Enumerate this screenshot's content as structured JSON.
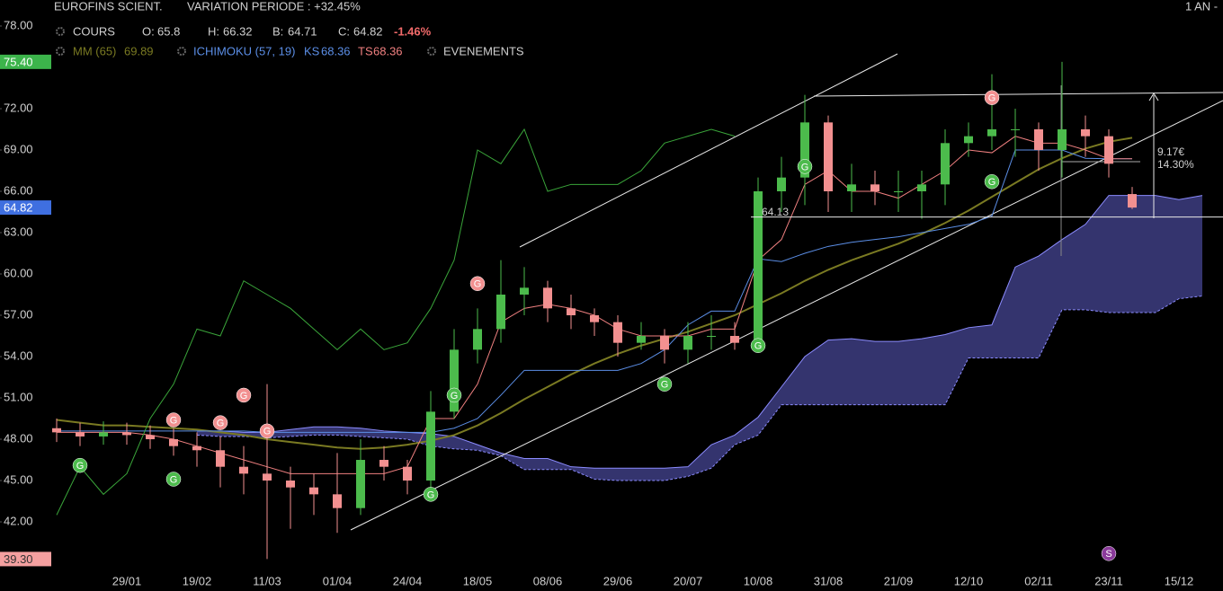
{
  "chart_data": {
    "type": "candlestick",
    "title": "EUROFINS SCIENT.",
    "variation": "VARIATION PERIODE : +32.45%",
    "period": "1 AN -",
    "legend": {
      "cours": "COURS",
      "ohlc": [
        {
          "name": "O:",
          "value": 65.8
        },
        {
          "name": "H:",
          "value": 66.32
        },
        {
          "name": "B:",
          "value": 64.71
        },
        {
          "name": "C:",
          "value": 64.82
        }
      ],
      "change": "-1.46%",
      "ichimoku": "ICHIMOKU (57, 19)",
      "events": "EVENEMENTS"
    },
    "categories": [
      null,
      null,
      null,
      "29/01",
      null,
      null,
      "19/02",
      null,
      null,
      "11/03",
      null,
      null,
      "01/04",
      null,
      null,
      "24/04",
      null,
      null,
      "18/05",
      null,
      null,
      "08/06",
      null,
      null,
      "29/06",
      null,
      null,
      "20/07",
      null,
      null,
      "10/08",
      null,
      null,
      "31/08",
      null,
      null,
      "21/09",
      null,
      null,
      "12/10",
      null,
      null,
      "02/11",
      null,
      null,
      "23/11",
      null,
      null,
      "15/12",
      null
    ],
    "open": [
      48.8,
      48.5,
      48.2,
      48.5,
      48.3,
      48.0,
      47.5,
      47.2,
      46.0,
      45.5,
      45.0,
      44.5,
      44.0,
      43.0,
      46.5,
      46.0,
      45.0,
      50.0,
      54.5,
      56.0,
      58.5,
      59.0,
      57.5,
      57.0,
      56.5,
      55.0,
      55.5,
      54.5,
      55.5,
      55.5,
      55.0,
      66.0,
      67.0,
      71.0,
      66.0,
      66.5,
      66.0,
      66.0,
      66.5,
      69.5,
      70.0,
      70.5,
      70.5,
      69.0,
      70.5,
      70.0,
      65.8,
      null,
      null,
      null
    ],
    "high": [
      49.5,
      49.2,
      49.3,
      49.2,
      49.0,
      48.8,
      48.5,
      48.2,
      47.5,
      52.0,
      46.0,
      45.5,
      47.0,
      48.0,
      47.5,
      46.5,
      51.5,
      56.0,
      57.5,
      61.0,
      60.5,
      59.5,
      58.5,
      57.5,
      57.0,
      56.5,
      56.0,
      56.5,
      57.0,
      56.5,
      67.0,
      68.5,
      73.0,
      71.5,
      68.0,
      67.5,
      67.5,
      67.5,
      70.5,
      71.0,
      74.5,
      72.0,
      71.0,
      75.4,
      71.5,
      70.5,
      66.32,
      null,
      null,
      null
    ],
    "low": [
      47.8,
      47.5,
      47.6,
      47.6,
      47.3,
      46.8,
      46.0,
      44.5,
      44.0,
      39.3,
      41.5,
      42.5,
      41.2,
      42.5,
      45.0,
      44.0,
      44.5,
      49.5,
      53.5,
      55.0,
      57.0,
      56.5,
      56.0,
      55.5,
      54.0,
      54.5,
      53.5,
      53.5,
      54.5,
      54.5,
      54.5,
      64.5,
      65.0,
      64.5,
      64.5,
      65.0,
      64.5,
      64.0,
      65.0,
      68.5,
      69.0,
      68.5,
      67.5,
      67.0,
      68.5,
      67.0,
      64.71,
      null,
      null,
      null
    ],
    "close": [
      48.5,
      48.2,
      48.5,
      48.3,
      48.0,
      47.5,
      47.2,
      46.0,
      45.5,
      45.0,
      44.5,
      44.0,
      43.0,
      46.5,
      46.0,
      45.0,
      50.0,
      54.5,
      56.0,
      58.5,
      59.0,
      57.5,
      57.0,
      56.5,
      55.0,
      55.5,
      54.5,
      55.5,
      55.5,
      55.0,
      66.0,
      67.0,
      71.0,
      66.0,
      66.5,
      66.0,
      66.0,
      66.5,
      69.5,
      70.0,
      70.5,
      70.5,
      69.0,
      70.5,
      70.0,
      68.0,
      64.82,
      null,
      null,
      null
    ],
    "up_color": "#4cbb4c",
    "down_color": "#f29090",
    "series": [
      {
        "name": "MM (65)",
        "last": 69.89,
        "color": "#7a7a22",
        "values": [
          49.4,
          49.2,
          49.0,
          49.0,
          48.9,
          48.8,
          48.7,
          48.5,
          48.3,
          48.0,
          47.8,
          47.6,
          47.4,
          47.3,
          47.4,
          47.6,
          47.9,
          48.3,
          49.0,
          49.9,
          50.9,
          51.8,
          52.7,
          53.5,
          54.2,
          54.8,
          55.3,
          55.8,
          56.4,
          57.0,
          57.8,
          58.6,
          59.5,
          60.3,
          61.0,
          61.6,
          62.2,
          62.9,
          63.7,
          64.6,
          65.6,
          66.6,
          67.6,
          68.4,
          69.1,
          69.6,
          69.89,
          null,
          null,
          null
        ]
      },
      {
        "name": "KS",
        "last": 68.36,
        "color": "#5b8ee6",
        "values": [
          48.6,
          48.6,
          48.6,
          48.6,
          48.6,
          48.6,
          48.6,
          48.6,
          48.6,
          48.5,
          48.5,
          48.5,
          48.5,
          48.5,
          48.5,
          48.5,
          48.5,
          48.8,
          49.5,
          51.2,
          53.0,
          53.0,
          53.0,
          53.0,
          53.0,
          53.5,
          54.5,
          56.3,
          57.3,
          57.3,
          61.1,
          60.9,
          61.5,
          62.0,
          62.3,
          62.5,
          62.7,
          63.0,
          63.3,
          63.6,
          64.2,
          69.0,
          69.0,
          69.0,
          68.4,
          68.36,
          68.36,
          null,
          null,
          null
        ]
      },
      {
        "name": "TS",
        "last": 68.36,
        "color": "#f08080",
        "values": [
          48.5,
          48.5,
          48.5,
          48.5,
          48.3,
          48.0,
          47.5,
          47.0,
          46.5,
          46.0,
          45.5,
          45.5,
          45.5,
          45.5,
          45.5,
          46.0,
          49.5,
          49.5,
          52.0,
          56.5,
          57.5,
          57.8,
          57.5,
          57.0,
          56.0,
          55.5,
          55.5,
          55.5,
          56.0,
          56.0,
          61.0,
          62.5,
          66.5,
          67.5,
          66.0,
          66.0,
          65.5,
          66.5,
          67.5,
          69.0,
          68.8,
          70.0,
          69.5,
          69.5,
          69.0,
          68.36,
          68.36,
          null,
          null,
          null
        ]
      },
      {
        "color": "#3aa53a",
        "values": [
          42.5,
          46.0,
          44.0,
          45.5,
          49.5,
          52.0,
          56.0,
          55.5,
          59.5,
          58.5,
          57.5,
          56.0,
          54.5,
          56.0,
          54.5,
          55.0,
          57.5,
          61.0,
          69.0,
          68.0,
          70.5,
          66.0,
          66.5,
          66.5,
          66.5,
          67.5,
          69.5,
          70.0,
          70.5,
          70.0,
          null,
          null,
          null,
          null,
          null,
          null,
          null,
          null,
          null,
          null,
          null,
          null,
          null,
          null,
          null,
          null,
          null,
          null,
          null,
          null
        ]
      }
    ],
    "cloud": {
      "color": "#34346e",
      "edge": "#8c8cff",
      "upper": [
        null,
        null,
        null,
        null,
        null,
        null,
        48.6,
        48.6,
        48.5,
        48.5,
        48.7,
        48.9,
        48.9,
        48.8,
        48.6,
        48.5,
        48.4,
        48.2,
        47.6,
        47.0,
        46.6,
        46.6,
        46.0,
        45.9,
        45.9,
        45.9,
        45.9,
        46.0,
        47.6,
        48.3,
        49.6,
        51.8,
        54.0,
        55.2,
        55.3,
        55.1,
        55.1,
        55.3,
        55.6,
        56.1,
        56.3,
        60.5,
        61.3,
        62.5,
        63.6,
        65.7,
        65.7,
        65.7,
        65.4,
        65.7
      ],
      "lower": [
        null,
        null,
        null,
        null,
        null,
        null,
        48.3,
        48.2,
        48.2,
        48.1,
        48.2,
        48.3,
        48.3,
        48.2,
        48.1,
        48.0,
        47.5,
        47.3,
        47.2,
        46.8,
        45.8,
        45.8,
        45.8,
        45.1,
        45.0,
        45.0,
        45.0,
        45.3,
        45.9,
        47.6,
        48.3,
        50.5,
        50.5,
        50.5,
        50.5,
        50.5,
        50.5,
        50.5,
        50.5,
        53.9,
        53.9,
        53.9,
        53.9,
        57.4,
        57.4,
        57.2,
        57.2,
        57.2,
        58.2,
        58.4
      ]
    },
    "events": [
      {
        "label": "G",
        "x": 5,
        "price": 49.4,
        "color": "#f29090"
      },
      {
        "label": "G",
        "x": 7,
        "price": 49.2,
        "color": "#f29090"
      },
      {
        "label": "G",
        "x": 8,
        "price": 51.2,
        "color": "#f29090"
      },
      {
        "label": "G",
        "x": 9,
        "price": 48.6,
        "color": "#f29090"
      },
      {
        "label": "G",
        "x": 18,
        "price": 59.3,
        "color": "#f29090"
      },
      {
        "label": "G",
        "x": 40,
        "price": 72.8,
        "color": "#f29090"
      },
      {
        "label": "G",
        "x": 1,
        "price": 46.1,
        "color": "#4cbb4c"
      },
      {
        "label": "G",
        "x": 5,
        "price": 45.1,
        "color": "#4cbb4c"
      },
      {
        "label": "G",
        "x": 16,
        "price": 44.0,
        "color": "#4cbb4c"
      },
      {
        "label": "G",
        "x": 17,
        "price": 51.2,
        "color": "#4cbb4c"
      },
      {
        "label": "G",
        "x": 26,
        "price": 52.0,
        "color": "#4cbb4c"
      },
      {
        "label": "G",
        "x": 30,
        "price": 54.8,
        "color": "#4cbb4c"
      },
      {
        "label": "G",
        "x": 32,
        "price": 67.8,
        "color": "#4cbb4c"
      },
      {
        "label": "G",
        "x": 40,
        "price": 66.7,
        "color": "#4cbb4c"
      },
      {
        "label": "S",
        "x": 45,
        "price": 39.7,
        "color": "#8a3a9a"
      }
    ],
    "price_markers": [
      {
        "value": 75.4,
        "label": "75.40",
        "color": "#3cb44b"
      },
      {
        "value": 64.82,
        "label": "64.82",
        "color": "#3f6fe0"
      },
      {
        "value": 39.3,
        "label": "39.30",
        "color": "#f4a0a0"
      }
    ],
    "annotations": {
      "level": 64.13,
      "level_label": "64.13",
      "range": "9.17€",
      "range_pct": "14.30%"
    },
    "ylim": [
      36.98,
      79.89
    ],
    "yticks": [
      {
        "value": 78,
        "label": "78.00"
      },
      {
        "value": 72,
        "label": "72.00"
      },
      {
        "value": 69,
        "label": "69.00"
      },
      {
        "value": 66,
        "label": "66.00"
      },
      {
        "value": 63,
        "label": "63.00"
      },
      {
        "value": 60,
        "label": "60.00"
      },
      {
        "value": 57,
        "label": "57.00"
      },
      {
        "value": 54,
        "label": "54.00"
      },
      {
        "value": 51,
        "label": "51.00"
      },
      {
        "value": 48,
        "label": "48.00"
      },
      {
        "value": 45,
        "label": "45.00"
      },
      {
        "value": 42,
        "label": "42.00"
      }
    ],
    "grid": false
  }
}
